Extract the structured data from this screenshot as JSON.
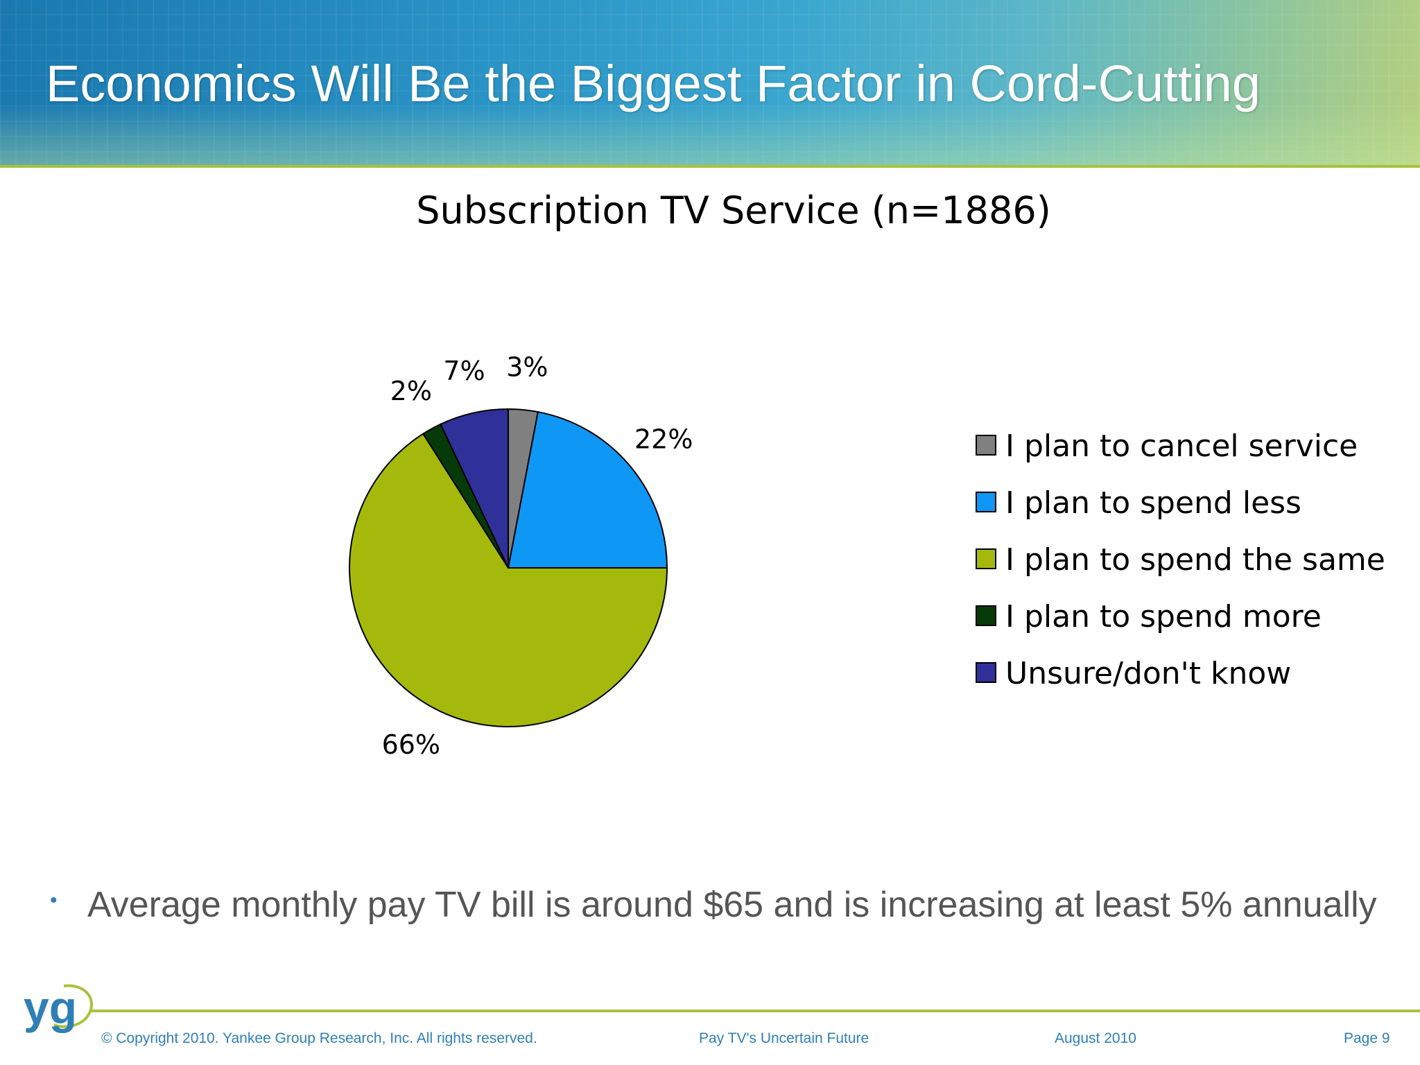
{
  "slide": {
    "title": "Economics Will Be the Biggest Factor in Cord-Cutting",
    "bullet": "Average monthly pay TV bill is around $65 and is increasing at least 5% annually",
    "logo_text": "yg"
  },
  "footer": {
    "copyright": "© Copyright 2010. Yankee Group Research, Inc.  All rights reserved.",
    "report": "Pay TV's Uncertain Future",
    "date": "August 2010",
    "page": "Page 9"
  },
  "colors": {
    "accent_green": "#a7c23e",
    "footer_blue": "#2f7fb7"
  },
  "chart_data": {
    "type": "pie",
    "title": "Subscription TV Service (n=1886)",
    "legend_position": "right",
    "slices": [
      {
        "label": "I plan to cancel service",
        "value": 3,
        "display": "3%",
        "color": "#808080"
      },
      {
        "label": "I plan to spend less",
        "value": 22,
        "display": "22%",
        "color": "#0f97f5"
      },
      {
        "label": "I plan to spend the same",
        "value": 66,
        "display": "66%",
        "color": "#a5b90c"
      },
      {
        "label": "I plan to spend more",
        "value": 2,
        "display": "2%",
        "color": "#063a08"
      },
      {
        "label": "Unsure/don't know",
        "value": 7,
        "display": "7%",
        "color": "#30309a"
      }
    ]
  }
}
